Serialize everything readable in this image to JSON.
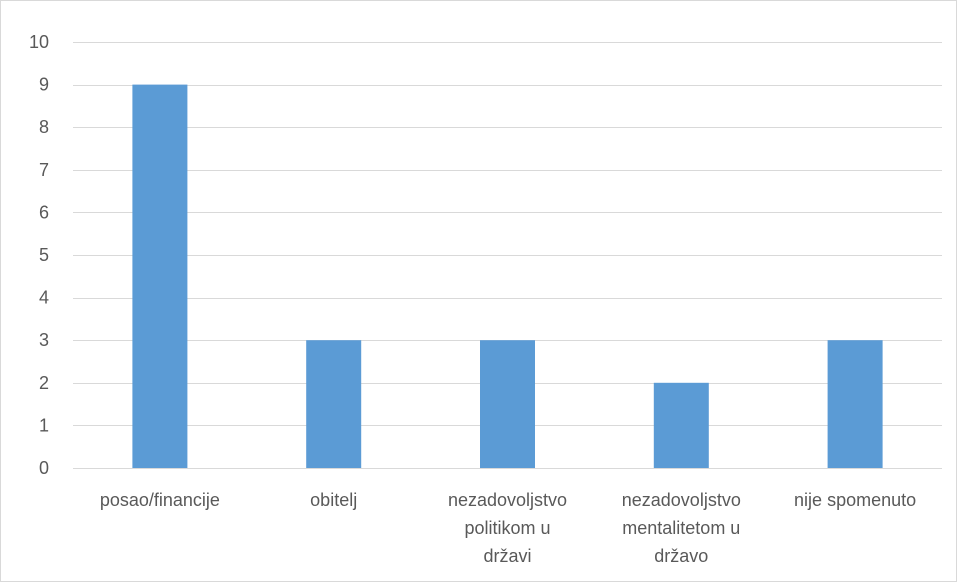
{
  "chart_data": {
    "type": "bar",
    "categories": [
      [
        "posao/financije"
      ],
      [
        "obitelj"
      ],
      [
        "nezadovoljstvo",
        "politikom u",
        "državi"
      ],
      [
        "nezadovoljstvo",
        "mentalitetom u",
        "državo"
      ],
      [
        "nije spomenuto"
      ]
    ],
    "values": [
      9,
      3,
      3,
      2,
      3
    ],
    "ylim": [
      0,
      10
    ],
    "yticks": [
      0,
      1,
      2,
      3,
      4,
      5,
      6,
      7,
      8,
      9,
      10
    ],
    "title": "",
    "xlabel": "",
    "ylabel": "",
    "grid": true,
    "legend": "none",
    "bar_color": "#5b9bd5",
    "grid_color": "#d9d9d9",
    "text_color": "#595959"
  }
}
